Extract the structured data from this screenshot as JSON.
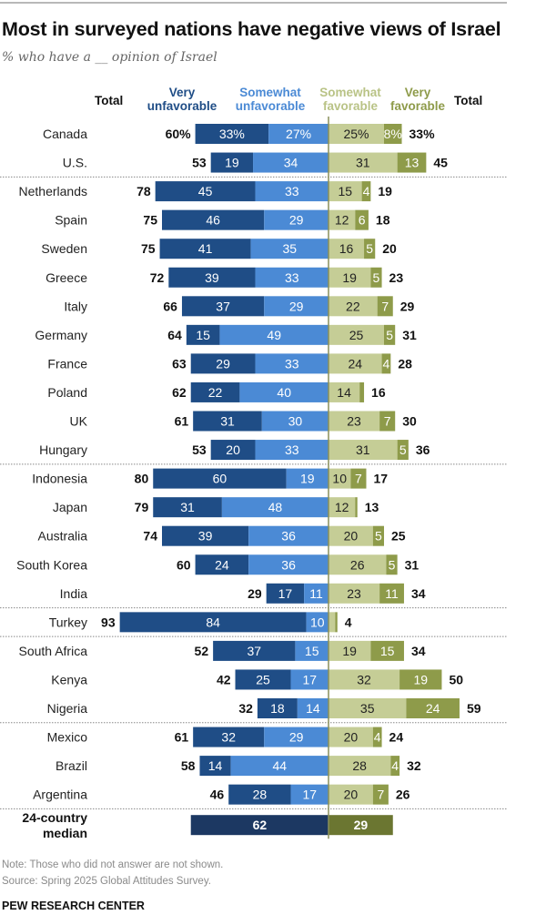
{
  "colors": {
    "very_unfavorable": "#1f4d86",
    "somewhat_unfavorable": "#4b8ad5",
    "somewhat_favorable": "#c5cd96",
    "very_favorable": "#8e9b4a",
    "median_unfavorable": "#1c3862",
    "median_favorable": "#6b7631",
    "axis": "#8a8f5a"
  },
  "header": {
    "title": "Most in surveyed nations have negative views of Israel",
    "subtitle": "% who have a __ opinion of Israel"
  },
  "columns": {
    "total_left": "Total",
    "very_unfavorable": [
      "Very",
      "unfavorable"
    ],
    "somewhat_unfavorable": [
      "Somewhat",
      "unfavorable"
    ],
    "somewhat_favorable": [
      "Somewhat",
      "favorable"
    ],
    "very_favorable": [
      "Very",
      "favorable"
    ],
    "total_right": "Total"
  },
  "chart_data": {
    "type": "bar",
    "subtype": "diverging-stacked-horizontal",
    "title": "Most in surveyed nations have negative views of Israel",
    "subtitle": "% who have a __ opinion of Israel",
    "xlabel": "",
    "ylabel": "",
    "unit": "%",
    "legend": [
      "Very unfavorable",
      "Somewhat unfavorable",
      "Somewhat favorable",
      "Very favorable"
    ],
    "legend_position": "top",
    "group_separators_after": [
      "U.S.",
      "Hungary",
      "India",
      "Turkey",
      "Nigeria",
      "Argentina"
    ],
    "rows": [
      {
        "country": "Canada",
        "total_unfav": "60%",
        "very_unfav": 33,
        "very_unfav_label": "33%",
        "some_unfav": 27,
        "some_unfav_label": "27%",
        "some_fav": 25,
        "some_fav_label": "25%",
        "very_fav": 8,
        "very_fav_label": "8%",
        "total_fav": "33%"
      },
      {
        "country": "U.S.",
        "total_unfav": "53",
        "very_unfav": 19,
        "very_unfav_label": "19",
        "some_unfav": 34,
        "some_unfav_label": "34",
        "some_fav": 31,
        "some_fav_label": "31",
        "very_fav": 13,
        "very_fav_label": "13",
        "total_fav": "45"
      },
      {
        "country": "Netherlands",
        "total_unfav": "78",
        "very_unfav": 45,
        "very_unfav_label": "45",
        "some_unfav": 33,
        "some_unfav_label": "33",
        "some_fav": 15,
        "some_fav_label": "15",
        "very_fav": 4,
        "very_fav_label": "4",
        "total_fav": "19"
      },
      {
        "country": "Spain",
        "total_unfav": "75",
        "very_unfav": 46,
        "very_unfav_label": "46",
        "some_unfav": 29,
        "some_unfav_label": "29",
        "some_fav": 12,
        "some_fav_label": "12",
        "very_fav": 6,
        "very_fav_label": "6",
        "total_fav": "18"
      },
      {
        "country": "Sweden",
        "total_unfav": "75",
        "very_unfav": 41,
        "very_unfav_label": "41",
        "some_unfav": 35,
        "some_unfav_label": "35",
        "some_fav": 16,
        "some_fav_label": "16",
        "very_fav": 5,
        "very_fav_label": "5",
        "total_fav": "20"
      },
      {
        "country": "Greece",
        "total_unfav": "72",
        "very_unfav": 39,
        "very_unfav_label": "39",
        "some_unfav": 33,
        "some_unfav_label": "33",
        "some_fav": 19,
        "some_fav_label": "19",
        "very_fav": 5,
        "very_fav_label": "5",
        "total_fav": "23"
      },
      {
        "country": "Italy",
        "total_unfav": "66",
        "very_unfav": 37,
        "very_unfav_label": "37",
        "some_unfav": 29,
        "some_unfav_label": "29",
        "some_fav": 22,
        "some_fav_label": "22",
        "very_fav": 7,
        "very_fav_label": "7",
        "total_fav": "29"
      },
      {
        "country": "Germany",
        "total_unfav": "64",
        "very_unfav": 15,
        "very_unfav_label": "15",
        "some_unfav": 49,
        "some_unfav_label": "49",
        "some_fav": 25,
        "some_fav_label": "25",
        "very_fav": 5,
        "very_fav_label": "5",
        "total_fav": "31"
      },
      {
        "country": "France",
        "total_unfav": "63",
        "very_unfav": 29,
        "very_unfav_label": "29",
        "some_unfav": 33,
        "some_unfav_label": "33",
        "some_fav": 24,
        "some_fav_label": "24",
        "very_fav": 4,
        "very_fav_label": "4",
        "total_fav": "28"
      },
      {
        "country": "Poland",
        "total_unfav": "62",
        "very_unfav": 22,
        "very_unfav_label": "22",
        "some_unfav": 40,
        "some_unfav_label": "40",
        "some_fav": 14,
        "some_fav_label": "14",
        "very_fav": 2,
        "very_fav_label": "",
        "total_fav": "16"
      },
      {
        "country": "UK",
        "total_unfav": "61",
        "very_unfav": 31,
        "very_unfav_label": "31",
        "some_unfav": 30,
        "some_unfav_label": "30",
        "some_fav": 23,
        "some_fav_label": "23",
        "very_fav": 7,
        "very_fav_label": "7",
        "total_fav": "30"
      },
      {
        "country": "Hungary",
        "total_unfav": "53",
        "very_unfav": 20,
        "very_unfav_label": "20",
        "some_unfav": 33,
        "some_unfav_label": "33",
        "some_fav": 31,
        "some_fav_label": "31",
        "very_fav": 5,
        "very_fav_label": "5",
        "total_fav": "36"
      },
      {
        "country": "Indonesia",
        "total_unfav": "80",
        "very_unfav": 60,
        "very_unfav_label": "60",
        "some_unfav": 19,
        "some_unfav_label": "19",
        "some_fav": 10,
        "some_fav_label": "10",
        "very_fav": 7,
        "very_fav_label": "7",
        "total_fav": "17"
      },
      {
        "country": "Japan",
        "total_unfav": "79",
        "very_unfav": 31,
        "very_unfav_label": "31",
        "some_unfav": 48,
        "some_unfav_label": "48",
        "some_fav": 12,
        "some_fav_label": "12",
        "very_fav": 1,
        "very_fav_label": "",
        "total_fav": "13"
      },
      {
        "country": "Australia",
        "total_unfav": "74",
        "very_unfav": 39,
        "very_unfav_label": "39",
        "some_unfav": 36,
        "some_unfav_label": "36",
        "some_fav": 20,
        "some_fav_label": "20",
        "very_fav": 5,
        "very_fav_label": "5",
        "total_fav": "25"
      },
      {
        "country": "South Korea",
        "total_unfav": "60",
        "very_unfav": 24,
        "very_unfav_label": "24",
        "some_unfav": 36,
        "some_unfav_label": "36",
        "some_fav": 26,
        "some_fav_label": "26",
        "very_fav": 5,
        "very_fav_label": "5",
        "total_fav": "31"
      },
      {
        "country": "India",
        "total_unfav": "29",
        "very_unfav": 17,
        "very_unfav_label": "17",
        "some_unfav": 11,
        "some_unfav_label": "11",
        "some_fav": 23,
        "some_fav_label": "23",
        "very_fav": 11,
        "very_fav_label": "11",
        "total_fav": "34"
      },
      {
        "country": "Turkey",
        "total_unfav": "93",
        "very_unfav": 84,
        "very_unfav_label": "84",
        "some_unfav": 10,
        "some_unfav_label": "10",
        "some_fav": 3,
        "some_fav_label": "",
        "very_fav": 1,
        "very_fav_label": "",
        "total_fav": "4"
      },
      {
        "country": "South Africa",
        "total_unfav": "52",
        "very_unfav": 37,
        "very_unfav_label": "37",
        "some_unfav": 15,
        "some_unfav_label": "15",
        "some_fav": 19,
        "some_fav_label": "19",
        "very_fav": 15,
        "very_fav_label": "15",
        "total_fav": "34"
      },
      {
        "country": "Kenya",
        "total_unfav": "42",
        "very_unfav": 25,
        "very_unfav_label": "25",
        "some_unfav": 17,
        "some_unfav_label": "17",
        "some_fav": 32,
        "some_fav_label": "32",
        "very_fav": 19,
        "very_fav_label": "19",
        "total_fav": "50"
      },
      {
        "country": "Nigeria",
        "total_unfav": "32",
        "very_unfav": 18,
        "very_unfav_label": "18",
        "some_unfav": 14,
        "some_unfav_label": "14",
        "some_fav": 35,
        "some_fav_label": "35",
        "very_fav": 24,
        "very_fav_label": "24",
        "total_fav": "59"
      },
      {
        "country": "Mexico",
        "total_unfav": "61",
        "very_unfav": 32,
        "very_unfav_label": "32",
        "some_unfav": 29,
        "some_unfav_label": "29",
        "some_fav": 20,
        "some_fav_label": "20",
        "very_fav": 4,
        "very_fav_label": "4",
        "total_fav": "24"
      },
      {
        "country": "Brazil",
        "total_unfav": "58",
        "very_unfav": 14,
        "very_unfav_label": "14",
        "some_unfav": 44,
        "some_unfav_label": "44",
        "some_fav": 28,
        "some_fav_label": "28",
        "very_fav": 4,
        "very_fav_label": "4",
        "total_fav": "32"
      },
      {
        "country": "Argentina",
        "total_unfav": "46",
        "very_unfav": 28,
        "very_unfav_label": "28",
        "some_unfav": 17,
        "some_unfav_label": "17",
        "some_fav": 20,
        "some_fav_label": "20",
        "very_fav": 7,
        "very_fav_label": "7",
        "total_fav": "26"
      }
    ],
    "median": {
      "label": [
        "24-country",
        "median"
      ],
      "unfavorable": 62,
      "unfavorable_label": "62",
      "favorable": 29,
      "favorable_label": "29"
    }
  },
  "footer": {
    "note": "Note: Those who did not answer are not shown.",
    "source": "Source: Spring 2025 Global Attitudes Survey.",
    "brand": "PEW RESEARCH CENTER"
  }
}
